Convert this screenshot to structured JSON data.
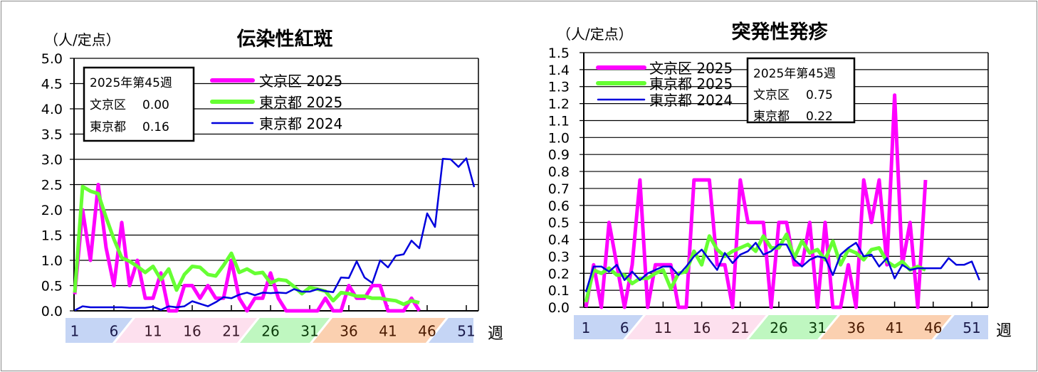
{
  "colors": {
    "bunkyo_2025": "#ff00ff",
    "tokyo_2025": "#66ff33",
    "tokyo_2024": "#0000dd",
    "band": [
      "#c5d5f5",
      "#fde0ee",
      "#bff7c0",
      "#fbd0b0",
      "#c5d5f5"
    ]
  },
  "chart_data": [
    {
      "type": "line",
      "title": "伝染性紅斑",
      "ylabel": "（人/定点）",
      "xlabel": "週",
      "ylim": [
        0,
        5.0
      ],
      "yticks": [
        "0.0",
        "0.5",
        "1.0",
        "1.5",
        "2.0",
        "2.5",
        "3.0",
        "3.5",
        "4.0",
        "4.5",
        "5.0"
      ],
      "xticks": [
        "1",
        "6",
        "11",
        "16",
        "21",
        "26",
        "31",
        "36",
        "41",
        "46",
        "51"
      ],
      "grid": true,
      "stats_box": {
        "heading": "2025年第45週",
        "rows": [
          {
            "label": "文京区",
            "value": "0.00"
          },
          {
            "label": "東京都",
            "value": "0.16"
          }
        ]
      },
      "series": [
        {
          "name": "文京区 2025",
          "values": [
            0.33,
            2.0,
            1.0,
            2.5,
            1.25,
            0.5,
            1.75,
            0.5,
            1.0,
            0.25,
            0.25,
            0.75,
            0,
            0,
            0.5,
            0.5,
            0.25,
            0.5,
            0.25,
            0.25,
            1.0,
            0.25,
            0,
            0.25,
            0.25,
            0.75,
            0.25,
            0,
            0,
            0,
            0,
            0,
            0.25,
            0,
            0,
            0.5,
            0.25,
            0.25,
            0.5,
            0.5,
            0,
            0,
            0,
            0.25,
            0
          ]
        },
        {
          "name": "東京都 2025",
          "values": [
            0.36,
            2.46,
            2.37,
            2.32,
            1.85,
            1.42,
            1.05,
            0.98,
            0.88,
            0.76,
            0.88,
            0.62,
            0.83,
            0.41,
            0.72,
            0.88,
            0.86,
            0.72,
            0.69,
            0.9,
            1.14,
            0.76,
            0.83,
            0.74,
            0.76,
            0.55,
            0.62,
            0.6,
            0.48,
            0.34,
            0.46,
            0.43,
            0.39,
            0.2,
            0.36,
            0.34,
            0.29,
            0.29,
            0.25,
            0.25,
            0.22,
            0.2,
            0.13,
            0.2,
            0.16
          ]
        },
        {
          "name": "東京都 2024",
          "values": [
            0.01,
            0.09,
            0.07,
            0.07,
            0.07,
            0.07,
            0.07,
            0.06,
            0.06,
            0.06,
            0.08,
            0.02,
            0.09,
            0.07,
            0.09,
            0.19,
            0.14,
            0.09,
            0.17,
            0.27,
            0.25,
            0.32,
            0.36,
            0.31,
            0.36,
            0.35,
            0.36,
            0.35,
            0.43,
            0.38,
            0.38,
            0.43,
            0.39,
            0.37,
            0.66,
            0.65,
            0.98,
            0.66,
            0.55,
            1.0,
            0.86,
            1.09,
            1.12,
            1.39,
            1.24,
            1.93,
            1.66,
            3.01,
            3.0,
            2.85,
            3.02,
            2.45
          ]
        }
      ]
    },
    {
      "type": "line",
      "title": "突発性発疹",
      "ylabel": "（人/定点）",
      "xlabel": "週",
      "ylim": [
        0,
        1.5
      ],
      "yticks": [
        "0.0",
        "0.1",
        "0.2",
        "0.3",
        "0.4",
        "0.5",
        "0.6",
        "0.7",
        "0.8",
        "0.9",
        "1.0",
        "1.1",
        "1.2",
        "1.3",
        "1.4",
        "1.5"
      ],
      "xticks": [
        "1",
        "6",
        "11",
        "16",
        "21",
        "26",
        "31",
        "36",
        "41",
        "46",
        "51"
      ],
      "grid": true,
      "stats_box": {
        "heading": "2025年第45週",
        "rows": [
          {
            "label": "文京区",
            "value": "0.75"
          },
          {
            "label": "東京都",
            "value": "0.22"
          }
        ]
      },
      "series": [
        {
          "name": "文京区 2025",
          "values": [
            0,
            0.25,
            0,
            0.5,
            0.25,
            0,
            0.25,
            0.75,
            0,
            0.25,
            0.25,
            0.25,
            0,
            0,
            0.75,
            0.75,
            0.75,
            0.25,
            0.25,
            0,
            0.75,
            0.5,
            0.5,
            0.5,
            0,
            0.5,
            0.5,
            0.25,
            0.25,
            0.5,
            0,
            0.5,
            0,
            0,
            0.25,
            0,
            0.75,
            0.5,
            0.75,
            0.25,
            1.25,
            0.25,
            0.5,
            0,
            0.75
          ]
        },
        {
          "name": "東京都 2025",
          "values": [
            0.03,
            0.22,
            0.2,
            0.23,
            0.19,
            0.19,
            0.14,
            0.17,
            0.17,
            0.2,
            0.22,
            0.11,
            0.2,
            0.21,
            0.33,
            0.25,
            0.42,
            0.34,
            0.3,
            0.33,
            0.35,
            0.37,
            0.33,
            0.42,
            0.35,
            0.35,
            0.43,
            0.29,
            0.39,
            0.32,
            0.34,
            0.28,
            0.39,
            0.25,
            0.34,
            0.32,
            0.28,
            0.34,
            0.35,
            0.27,
            0.24,
            0.27,
            0.22,
            0.24,
            0.22
          ]
        },
        {
          "name": "東京都 2024",
          "values": [
            0.09,
            0.24,
            0.24,
            0.21,
            0.25,
            0.16,
            0.21,
            0.16,
            0.2,
            0.22,
            0.24,
            0.24,
            0.19,
            0.24,
            0.3,
            0.34,
            0.28,
            0.22,
            0.32,
            0.26,
            0.31,
            0.33,
            0.38,
            0.31,
            0.33,
            0.37,
            0.37,
            0.28,
            0.24,
            0.28,
            0.3,
            0.29,
            0.19,
            0.31,
            0.35,
            0.38,
            0.3,
            0.31,
            0.24,
            0.29,
            0.17,
            0.25,
            0.22,
            0.23,
            0.23,
            0.23,
            0.23,
            0.29,
            0.25,
            0.25,
            0.27,
            0.16
          ]
        }
      ]
    }
  ]
}
